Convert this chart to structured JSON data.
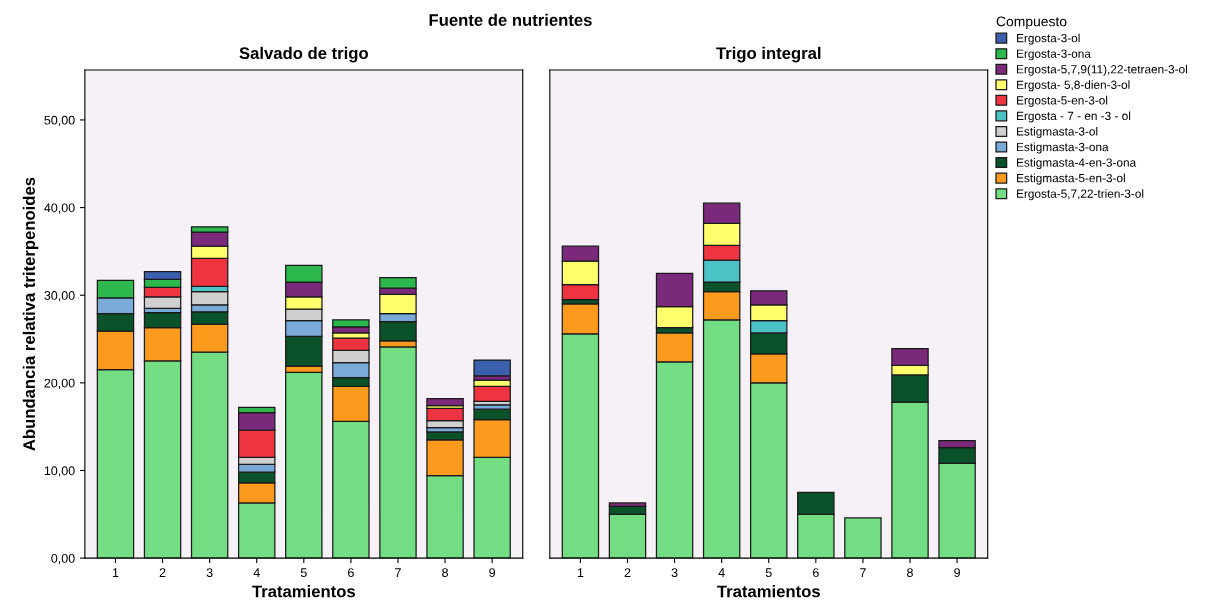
{
  "chart_data": [
    {
      "type": "bar",
      "stacked": true,
      "title": "Salvado de trigo",
      "xlabel": "Tratamientos",
      "ylabel": "Abundancia relativa triterpenoides",
      "legend_title": "Compuesto",
      "legend": "right",
      "annotations": [
        "Fuente de nutrientes"
      ],
      "categories": [
        "1",
        "2",
        "3",
        "4",
        "5",
        "6",
        "7",
        "8",
        "9"
      ],
      "ylim": [
        0,
        55.7
      ],
      "yticks": [
        {
          "value": 0,
          "label": "0,00"
        },
        {
          "value": 10,
          "label": "10,00"
        },
        {
          "value": 20,
          "label": "20,00"
        },
        {
          "value": 30,
          "label": "30,00"
        },
        {
          "value": 40,
          "label": "40,00"
        },
        {
          "value": 50,
          "label": "50,00"
        }
      ],
      "series": [
        {
          "name": "Ergosta-5,7,22-trien-3-ol",
          "color": "#72dd83",
          "values": [
            21.5,
            22.5,
            23.5,
            6.3,
            21.2,
            15.6,
            24.1,
            9.4,
            11.5
          ]
        },
        {
          "name": "Estigmasta-5-en-3-ol",
          "color": "#fb9a1c",
          "values": [
            4.4,
            3.8,
            3.2,
            2.3,
            0.7,
            4.0,
            0.7,
            4.1,
            4.3
          ]
        },
        {
          "name": "Estigmasta-4-en-3-ona",
          "color": "#0a5229",
          "values": [
            2.0,
            1.7,
            1.4,
            1.2,
            3.4,
            1.0,
            2.2,
            0.9,
            1.2
          ]
        },
        {
          "name": "Estigmasta-3-ona",
          "color": "#7aaad8",
          "values": [
            1.8,
            0.5,
            0.8,
            0.9,
            1.8,
            1.7,
            0.9,
            0.5,
            0.5
          ]
        },
        {
          "name": "Estigmasta-3-ol",
          "color": "#cfcfcf",
          "values": [
            null,
            1.3,
            1.5,
            0.8,
            1.3,
            1.4,
            null,
            0.8,
            0.4
          ]
        },
        {
          "name": "Ergosta - 7 - en -3 - ol",
          "color": "#4bc2c5",
          "values": [
            null,
            null,
            0.6,
            null,
            null,
            null,
            null,
            null,
            null
          ]
        },
        {
          "name": "Ergosta-5-en-3-ol",
          "color": "#ef3340",
          "values": [
            null,
            1.1,
            3.2,
            3.1,
            null,
            1.4,
            null,
            1.4,
            1.7
          ]
        },
        {
          "name": "Ergosta- 5,8-dien-3-ol",
          "color": "#ffff6e",
          "values": [
            null,
            null,
            1.4,
            null,
            1.4,
            0.6,
            2.2,
            0.3,
            0.7
          ]
        },
        {
          "name": "Ergosta-5,7,9(11),22-tetraen-3-ol",
          "color": "#7b2a7b",
          "values": [
            null,
            null,
            1.6,
            2.0,
            1.7,
            0.7,
            0.7,
            0.8,
            0.5
          ]
        },
        {
          "name": "Ergosta-3-ona",
          "color": "#2db84d",
          "values": [
            2.0,
            0.9,
            0.6,
            0.6,
            1.9,
            0.8,
            1.2,
            null,
            null
          ]
        },
        {
          "name": "Ergosta-3-ol",
          "color": "#3a5fad",
          "values": [
            null,
            0.9,
            null,
            null,
            null,
            null,
            null,
            null,
            1.8
          ]
        }
      ]
    },
    {
      "type": "bar",
      "stacked": true,
      "title": "Trigo integral",
      "xlabel": "Tratamientos",
      "tick_labels": "x",
      "categories": [
        "1",
        "2",
        "3",
        "4",
        "5",
        "6",
        "7",
        "8",
        "9"
      ],
      "ylim": [
        0,
        55.7
      ],
      "series": [
        {
          "color": "#72dd83",
          "values": [
            25.6,
            5.0,
            22.4,
            27.2,
            20.0,
            5.0,
            4.6,
            17.8,
            10.8
          ]
        },
        {
          "color": "#fb9a1c",
          "values": [
            3.4,
            null,
            3.3,
            3.2,
            3.3,
            null,
            null,
            null,
            null
          ]
        },
        {
          "color": "#0a5229",
          "values": [
            0.5,
            0.9,
            0.6,
            1.1,
            2.4,
            2.5,
            null,
            3.1,
            1.8
          ]
        },
        {
          "color": "#4bc2c5",
          "values": [
            null,
            null,
            null,
            2.5,
            1.4,
            null,
            null,
            null,
            null
          ]
        },
        {
          "color": "#ef3340",
          "values": [
            1.7,
            null,
            null,
            1.7,
            null,
            null,
            null,
            null,
            null
          ]
        },
        {
          "color": "#ffff6e",
          "values": [
            2.7,
            null,
            2.4,
            2.5,
            1.8,
            null,
            null,
            1.1,
            null
          ]
        },
        {
          "color": "#7b2a7b",
          "values": [
            1.7,
            0.4,
            3.8,
            2.3,
            1.6,
            null,
            null,
            1.9,
            0.8
          ]
        }
      ]
    }
  ]
}
